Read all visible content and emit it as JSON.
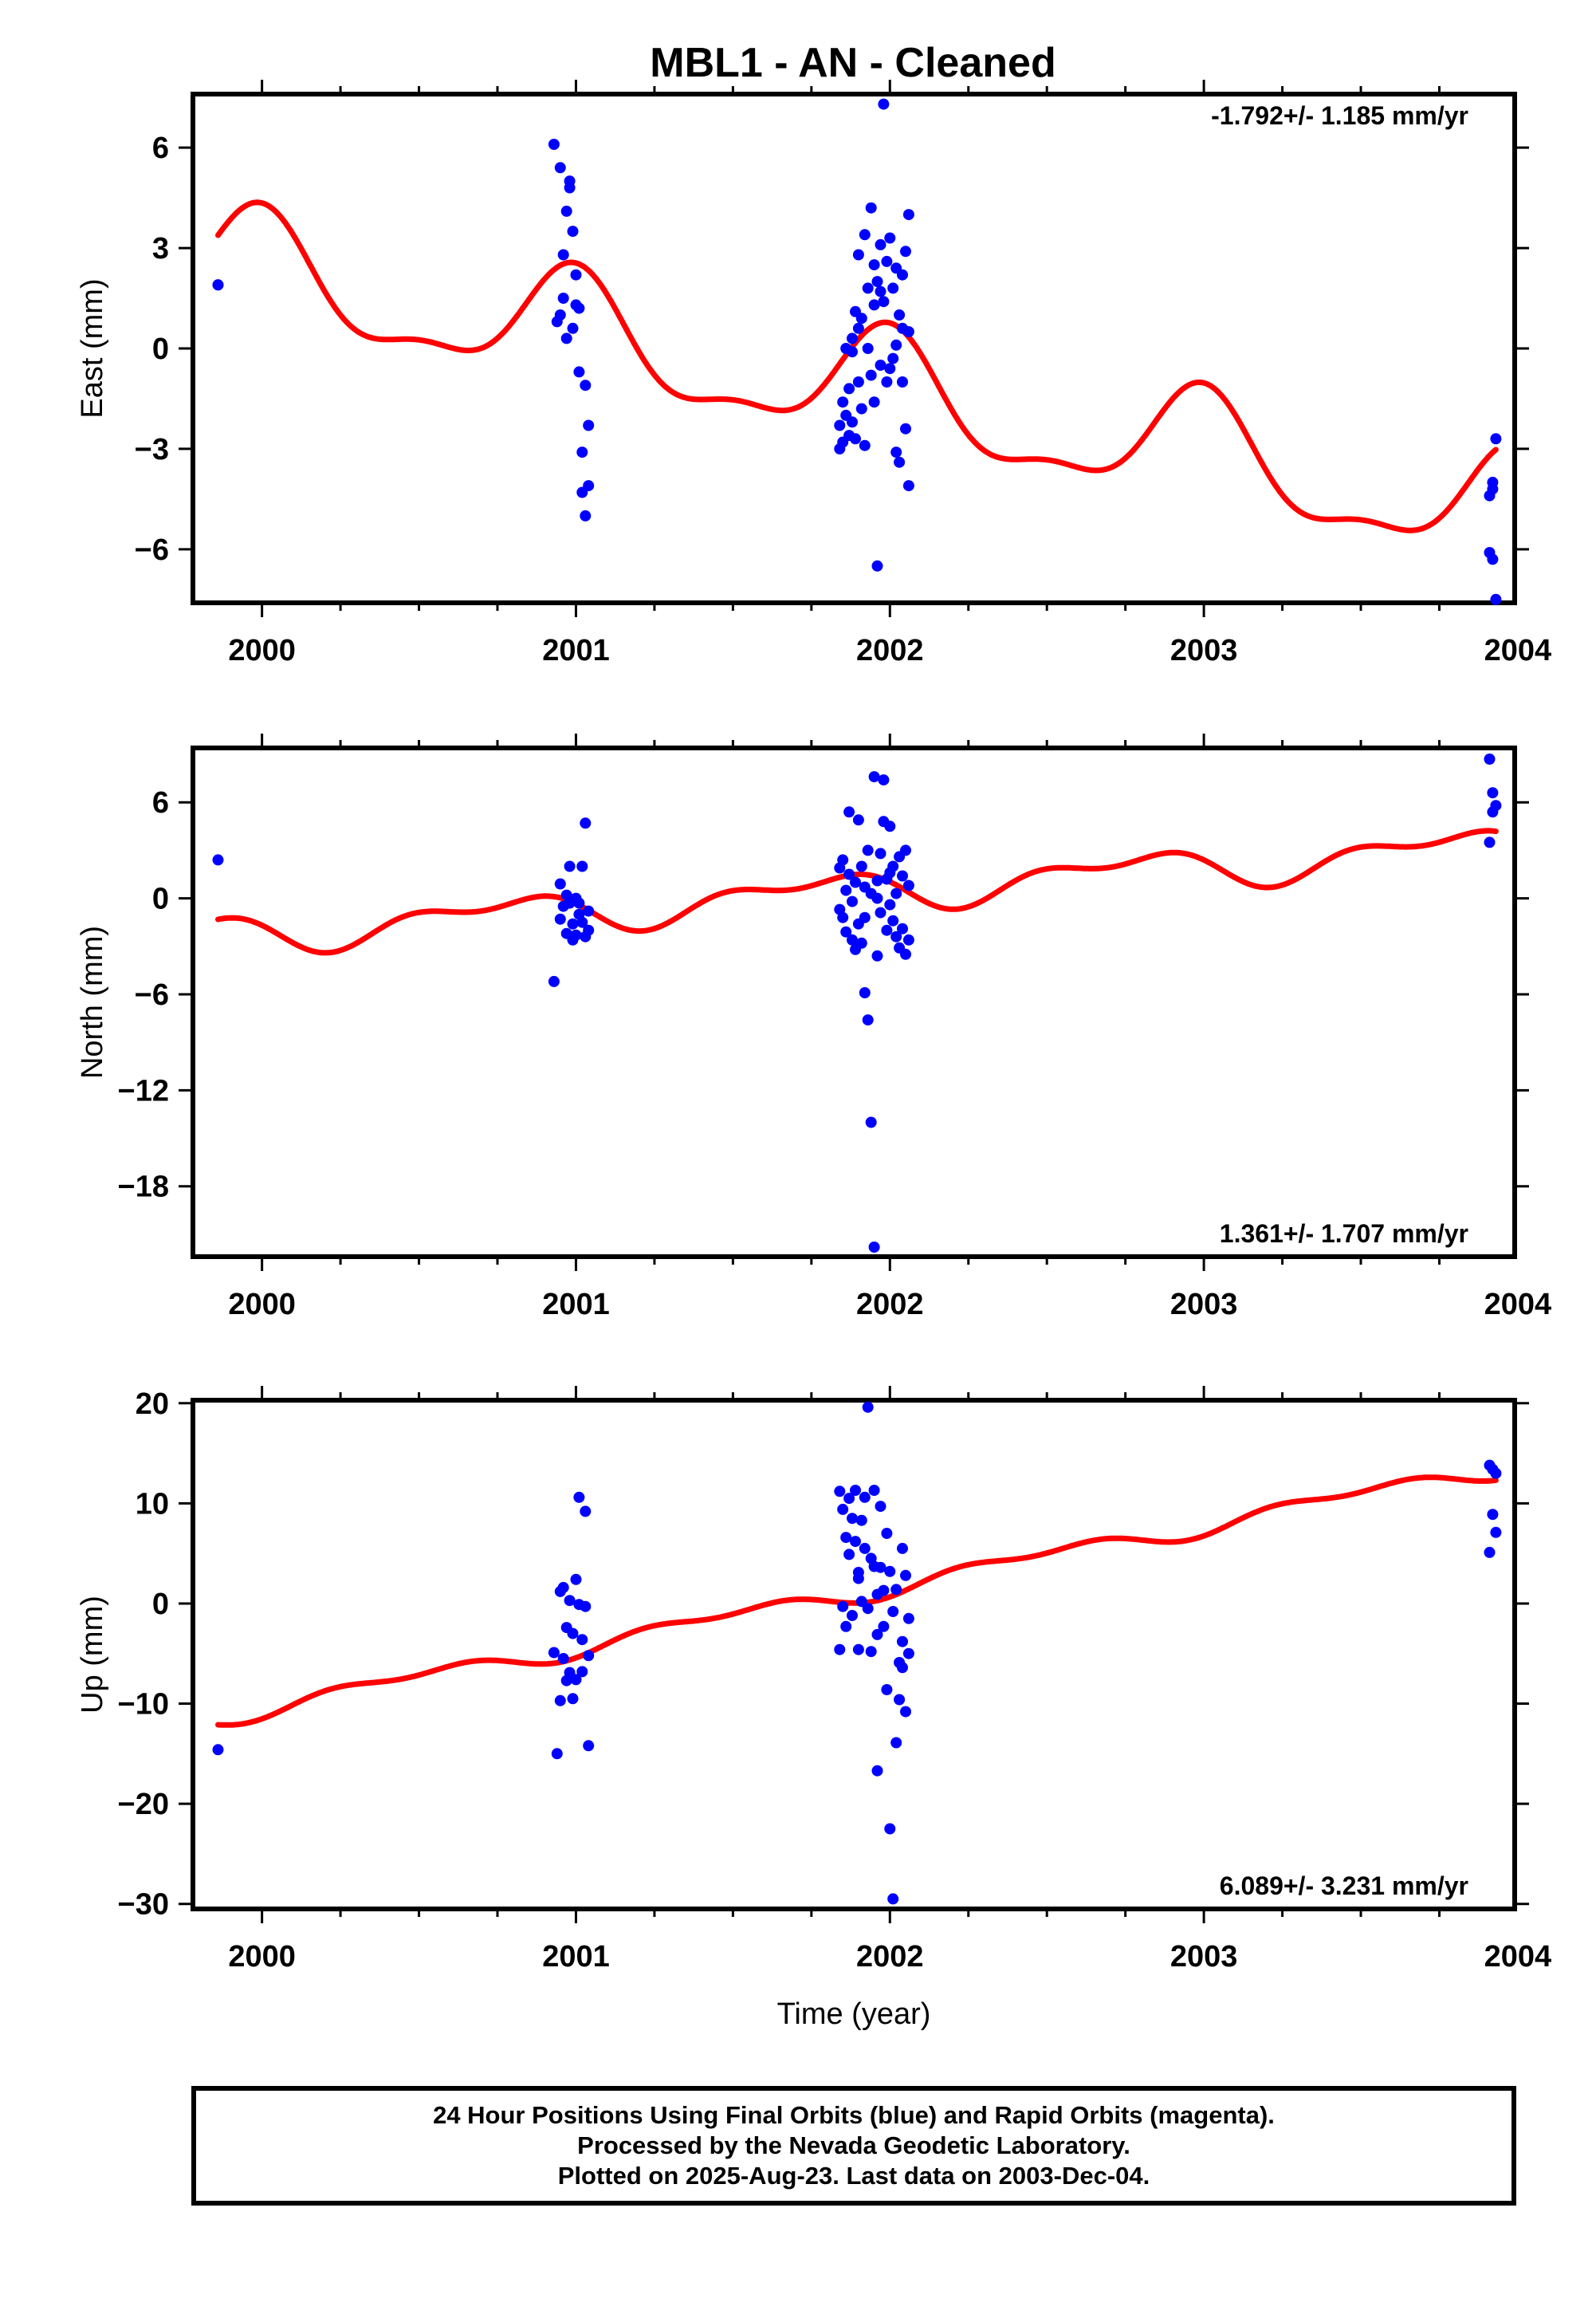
{
  "title": "MBL1  - AN - Cleaned",
  "colors": {
    "points": "#0000ff",
    "fit": "#ff0000",
    "frame": "#000000"
  },
  "caption": [
    "24 Hour Positions Using Final Orbits (blue) and Rapid Orbits (magenta).",
    "Processed by the Nevada Geodetic Laboratory.",
    "Plotted on 2025-Aug-23. Last data on 2003-Dec-04."
  ],
  "chart_data": [
    {
      "type": "scatter",
      "title": "MBL1  - AN - Cleaned",
      "xlabel": "",
      "ylabel": "East (mm)",
      "xlim": [
        1999.78,
        2003.99
      ],
      "ylim": [
        -7.6,
        7.6
      ],
      "xticks": [
        2000,
        2001,
        2002,
        2003,
        2004
      ],
      "xtick_labels": [
        "2000",
        "2001",
        "2002",
        "2003",
        "2004"
      ],
      "yticks": [
        -6,
        -3,
        0,
        3,
        6
      ],
      "ytick_labels": [
        "−6",
        "−3",
        "0",
        "3",
        "6"
      ],
      "rate_label": "-1.792+/- 1.185 mm/yr",
      "rate_position": "top-right",
      "fit": {
        "t0": 1999.86,
        "offset": 2.4,
        "slope": -1.792,
        "annual": 1.6,
        "annual_phase": 1999.99,
        "semiannual": 0.6,
        "semiannual_phase": 2000.0
      },
      "points": [
        [
          1999.86,
          1.9
        ],
        [
          2000.93,
          6.1
        ],
        [
          2000.94,
          0.8
        ],
        [
          2000.95,
          5.4
        ],
        [
          2000.95,
          1.0
        ],
        [
          2000.96,
          2.8
        ],
        [
          2000.96,
          1.5
        ],
        [
          2000.97,
          4.1
        ],
        [
          2000.97,
          0.3
        ],
        [
          2000.98,
          5.0
        ],
        [
          2000.98,
          4.8
        ],
        [
          2000.99,
          3.5
        ],
        [
          2000.99,
          0.6
        ],
        [
          2001.0,
          1.3
        ],
        [
          2001.0,
          2.2
        ],
        [
          2001.01,
          1.2
        ],
        [
          2001.01,
          -0.7
        ],
        [
          2001.02,
          -4.3
        ],
        [
          2001.02,
          -3.1
        ],
        [
          2001.03,
          -5.0
        ],
        [
          2001.03,
          -1.1
        ],
        [
          2001.04,
          -4.1
        ],
        [
          2001.04,
          -2.3
        ],
        [
          1999.86,
          1.9
        ],
        [
          2001.84,
          -2.3
        ],
        [
          2001.84,
          -3.0
        ],
        [
          2001.85,
          -1.6
        ],
        [
          2001.85,
          -2.8
        ],
        [
          2001.86,
          -2.0
        ],
        [
          2001.86,
          0.0
        ],
        [
          2001.87,
          -2.6
        ],
        [
          2001.87,
          -1.2
        ],
        [
          2001.88,
          0.3
        ],
        [
          2001.88,
          -2.2
        ],
        [
          2001.89,
          -2.7
        ],
        [
          2001.89,
          1.1
        ],
        [
          2001.9,
          2.8
        ],
        [
          2001.9,
          -1.0
        ],
        [
          2001.91,
          0.9
        ],
        [
          2001.91,
          -1.8
        ],
        [
          2001.92,
          3.4
        ],
        [
          2001.92,
          -2.9
        ],
        [
          2001.93,
          1.8
        ],
        [
          2001.93,
          0.0
        ],
        [
          2001.94,
          4.2
        ],
        [
          2001.94,
          -0.8
        ],
        [
          2001.95,
          1.3
        ],
        [
          2001.95,
          -1.6
        ],
        [
          2001.96,
          2.0
        ],
        [
          2001.96,
          -6.5
        ],
        [
          2001.97,
          1.7
        ],
        [
          2001.97,
          -0.5
        ],
        [
          2001.98,
          7.3
        ],
        [
          2001.98,
          1.4
        ],
        [
          2001.99,
          2.6
        ],
        [
          2001.99,
          -1.0
        ],
        [
          2002.0,
          3.3
        ],
        [
          2002.0,
          -0.6
        ],
        [
          2002.01,
          1.8
        ],
        [
          2002.01,
          -0.3
        ],
        [
          2002.02,
          2.4
        ],
        [
          2002.02,
          -3.1
        ],
        [
          2002.03,
          1.0
        ],
        [
          2002.03,
          -3.4
        ],
        [
          2002.04,
          2.2
        ],
        [
          2002.04,
          0.6
        ],
        [
          2002.05,
          2.9
        ],
        [
          2002.05,
          -2.4
        ],
        [
          2002.06,
          4.0
        ],
        [
          2002.06,
          0.5
        ],
        [
          2002.06,
          -4.1
        ],
        [
          2002.02,
          0.1
        ],
        [
          2002.04,
          -1.0
        ],
        [
          2001.97,
          3.1
        ],
        [
          2001.95,
          2.5
        ],
        [
          2001.9,
          0.6
        ],
        [
          2001.88,
          -0.1
        ],
        [
          2003.91,
          -4.4
        ],
        [
          2003.91,
          -6.1
        ],
        [
          2003.92,
          -4.2
        ],
        [
          2003.92,
          -6.3
        ],
        [
          2003.93,
          -7.5
        ],
        [
          2003.93,
          -2.7
        ],
        [
          2003.92,
          -4.0
        ]
      ]
    },
    {
      "type": "scatter",
      "title": "",
      "xlabel": "",
      "ylabel": "North (mm)",
      "xlim": [
        1999.78,
        2003.99
      ],
      "ylim": [
        -22.4,
        9.4
      ],
      "xticks": [
        2000,
        2001,
        2002,
        2003,
        2004
      ],
      "xtick_labels": [
        "2000",
        "2001",
        "2002",
        "2003",
        "2004"
      ],
      "yticks": [
        -18,
        -12,
        -6,
        0,
        6
      ],
      "ytick_labels": [
        "−18",
        "−12",
        "−6",
        "0",
        "6"
      ],
      "rate_label": "1.361+/- 1.707 mm/yr",
      "rate_position": "bottom-right",
      "fit": {
        "t0": 1999.86,
        "offset": -2.3,
        "slope": 1.361,
        "annual": 1.0,
        "annual_phase": 1999.74,
        "semiannual": 0.6,
        "semiannual_phase": 1999.95
      },
      "points": [
        [
          1999.86,
          2.4
        ],
        [
          2000.93,
          -5.2
        ],
        [
          2000.95,
          -1.3
        ],
        [
          2000.95,
          0.9
        ],
        [
          2000.96,
          -0.5
        ],
        [
          2000.97,
          -2.2
        ],
        [
          2000.97,
          0.2
        ],
        [
          2000.98,
          -0.3
        ],
        [
          2000.98,
          2.0
        ],
        [
          2000.99,
          -2.6
        ],
        [
          2000.99,
          -1.6
        ],
        [
          2001.0,
          0.0
        ],
        [
          2001.0,
          -2.3
        ],
        [
          2001.01,
          -1.0
        ],
        [
          2001.01,
          -0.3
        ],
        [
          2001.02,
          2.0
        ],
        [
          2001.02,
          -1.5
        ],
        [
          2001.03,
          4.7
        ],
        [
          2001.03,
          -2.4
        ],
        [
          2001.04,
          -0.8
        ],
        [
          2001.04,
          -2.0
        ],
        [
          2001.84,
          1.9
        ],
        [
          2001.84,
          -0.7
        ],
        [
          2001.85,
          2.4
        ],
        [
          2001.85,
          -1.2
        ],
        [
          2001.86,
          0.5
        ],
        [
          2001.86,
          -2.1
        ],
        [
          2001.87,
          5.4
        ],
        [
          2001.87,
          1.5
        ],
        [
          2001.88,
          -0.2
        ],
        [
          2001.88,
          -2.6
        ],
        [
          2001.89,
          1.0
        ],
        [
          2001.89,
          -3.2
        ],
        [
          2001.9,
          4.9
        ],
        [
          2001.9,
          -1.6
        ],
        [
          2001.91,
          2.0
        ],
        [
          2001.91,
          -2.8
        ],
        [
          2001.92,
          0.7
        ],
        [
          2001.92,
          -5.9
        ],
        [
          2001.93,
          3.0
        ],
        [
          2001.93,
          -7.6
        ],
        [
          2001.94,
          0.3
        ],
        [
          2001.94,
          -14.0
        ],
        [
          2001.95,
          7.6
        ],
        [
          2001.95,
          -21.8
        ],
        [
          2001.96,
          1.1
        ],
        [
          2001.96,
          -3.6
        ],
        [
          2001.97,
          2.8
        ],
        [
          2001.97,
          -0.9
        ],
        [
          2001.98,
          4.8
        ],
        [
          2001.98,
          7.4
        ],
        [
          2001.99,
          1.2
        ],
        [
          2001.99,
          -2.0
        ],
        [
          2002.0,
          4.5
        ],
        [
          2002.0,
          -0.4
        ],
        [
          2002.01,
          2.0
        ],
        [
          2002.01,
          -1.4
        ],
        [
          2002.02,
          -2.4
        ],
        [
          2002.02,
          0.3
        ],
        [
          2002.03,
          2.6
        ],
        [
          2002.03,
          -3.1
        ],
        [
          2002.04,
          1.4
        ],
        [
          2002.04,
          -1.9
        ],
        [
          2002.05,
          3.0
        ],
        [
          2002.05,
          -3.5
        ],
        [
          2002.06,
          0.8
        ],
        [
          2002.06,
          -2.6
        ],
        [
          2002.0,
          1.6
        ],
        [
          2001.96,
          0.0
        ],
        [
          2001.92,
          -1.2
        ],
        [
          2003.91,
          3.5
        ],
        [
          2003.91,
          8.7
        ],
        [
          2003.92,
          5.4
        ],
        [
          2003.92,
          6.6
        ],
        [
          2003.93,
          5.8
        ]
      ]
    },
    {
      "type": "scatter",
      "title": "",
      "xlabel": "Time (year)",
      "ylabel": "Up (mm)",
      "xlim": [
        1999.78,
        2003.99
      ],
      "ylim": [
        -30.5,
        20.3
      ],
      "xticks": [
        2000,
        2001,
        2002,
        2003,
        2004
      ],
      "xtick_labels": [
        "2000",
        "2001",
        "2002",
        "2003",
        "2004"
      ],
      "yticks": [
        -30,
        -20,
        -10,
        0,
        10,
        20
      ],
      "ytick_labels": [
        "−30",
        "−20",
        "−10",
        "0",
        "10",
        "20"
      ],
      "rate_label": "6.089+/- 3.231 mm/yr",
      "rate_position": "bottom-right",
      "fit": {
        "t0": 1999.86,
        "offset": -11.3,
        "slope": 6.089,
        "annual": 0.7,
        "annual_phase": 2000.45,
        "semiannual": 0.5,
        "semiannual_phase": 2000.2
      },
      "points": [
        [
          1999.86,
          -14.6
        ],
        [
          2000.93,
          -4.9
        ],
        [
          2000.94,
          -15.0
        ],
        [
          2000.95,
          -9.7
        ],
        [
          2000.95,
          1.2
        ],
        [
          2000.96,
          -5.5
        ],
        [
          2000.96,
          1.6
        ],
        [
          2000.97,
          -7.7
        ],
        [
          2000.97,
          -2.4
        ],
        [
          2000.98,
          -6.9
        ],
        [
          2000.98,
          0.3
        ],
        [
          2000.99,
          -9.5
        ],
        [
          2000.99,
          -3.0
        ],
        [
          2001.0,
          -7.6
        ],
        [
          2001.0,
          2.4
        ],
        [
          2001.01,
          10.6
        ],
        [
          2001.01,
          -0.1
        ],
        [
          2001.02,
          -3.6
        ],
        [
          2001.02,
          -6.8
        ],
        [
          2001.03,
          9.2
        ],
        [
          2001.03,
          -0.3
        ],
        [
          2001.04,
          -14.2
        ],
        [
          2001.04,
          -5.2
        ],
        [
          2001.84,
          -4.6
        ],
        [
          2001.84,
          11.2
        ],
        [
          2001.85,
          9.4
        ],
        [
          2001.85,
          -0.3
        ],
        [
          2001.86,
          6.6
        ],
        [
          2001.86,
          -2.3
        ],
        [
          2001.87,
          10.5
        ],
        [
          2001.87,
          4.9
        ],
        [
          2001.88,
          8.5
        ],
        [
          2001.88,
          -1.2
        ],
        [
          2001.89,
          11.3
        ],
        [
          2001.89,
          6.2
        ],
        [
          2001.9,
          3.1
        ],
        [
          2001.9,
          -4.6
        ],
        [
          2001.91,
          8.3
        ],
        [
          2001.91,
          0.2
        ],
        [
          2001.92,
          10.6
        ],
        [
          2001.92,
          5.5
        ],
        [
          2001.93,
          -0.5
        ],
        [
          2001.93,
          19.6
        ],
        [
          2001.94,
          4.5
        ],
        [
          2001.94,
          -4.8
        ],
        [
          2001.95,
          11.3
        ],
        [
          2001.95,
          3.7
        ],
        [
          2001.96,
          0.9
        ],
        [
          2001.96,
          -16.7
        ],
        [
          2001.97,
          3.6
        ],
        [
          2001.97,
          9.7
        ],
        [
          2001.98,
          1.3
        ],
        [
          2001.98,
          -2.3
        ],
        [
          2001.99,
          7.0
        ],
        [
          2001.99,
          -8.6
        ],
        [
          2002.0,
          3.2
        ],
        [
          2002.0,
          -22.5
        ],
        [
          2002.01,
          -29.5
        ],
        [
          2002.01,
          -0.8
        ],
        [
          2002.02,
          1.4
        ],
        [
          2002.02,
          -13.9
        ],
        [
          2002.03,
          -9.6
        ],
        [
          2002.03,
          -5.9
        ],
        [
          2002.04,
          5.5
        ],
        [
          2002.04,
          -3.8
        ],
        [
          2002.05,
          -10.8
        ],
        [
          2002.05,
          2.8
        ],
        [
          2002.06,
          -5.0
        ],
        [
          2002.06,
          -1.5
        ],
        [
          2001.96,
          -3.1
        ],
        [
          2001.9,
          2.5
        ],
        [
          2002.04,
          -6.4
        ],
        [
          2003.91,
          13.8
        ],
        [
          2003.91,
          5.1
        ],
        [
          2003.92,
          13.4
        ],
        [
          2003.92,
          8.9
        ],
        [
          2003.93,
          7.1
        ],
        [
          2003.93,
          13.0
        ]
      ]
    }
  ]
}
